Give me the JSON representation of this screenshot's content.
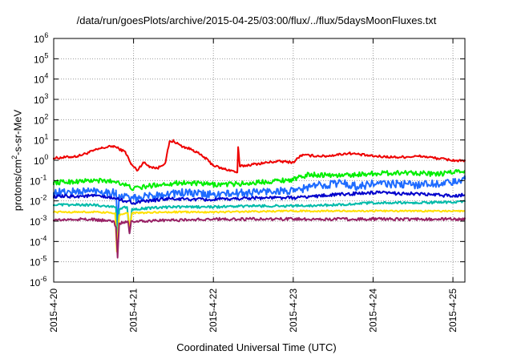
{
  "chart_data": {
    "type": "line",
    "title": "/data/run/goesPlots/archive/2015-04-25/03:00/flux/../flux/5daysMoonFluxes.txt",
    "xlabel": "Coordinated Universal Time (UTC)",
    "ylabel": "protons/cm2-s-sr-MeV",
    "ylabel_base": "protons/cm",
    "ylabel_sup": "2",
    "ylabel_rest": "-s-sr-MeV",
    "x_ticks": [
      "2015-4-20",
      "2015-4-21",
      "2015-4-22",
      "2015-4-23",
      "2015-4-24",
      "2015-4-25"
    ],
    "x_tick_days": [
      0,
      1,
      2,
      3,
      4,
      5
    ],
    "x_range_days": [
      0,
      5.15
    ],
    "y_scale": "log",
    "y_ticks": [
      "10",
      "10",
      "10",
      "10",
      "10",
      "10",
      "10",
      "10",
      "10",
      "10",
      "10",
      "10",
      "10"
    ],
    "y_tick_exp": [
      "6",
      "5",
      "4",
      "3",
      "2",
      "1",
      "0",
      "-1",
      "-2",
      "-3",
      "-4",
      "-5",
      "-6"
    ],
    "y_range_exp": [
      -6,
      6
    ],
    "grid": true,
    "series": [
      {
        "color": "#ee0000",
        "noise": 0.06,
        "points": [
          [
            0,
            0.1
          ],
          [
            0.3,
            0.2
          ],
          [
            0.6,
            0.6
          ],
          [
            0.75,
            0.7
          ],
          [
            0.9,
            0.4
          ],
          [
            0.97,
            -0.2
          ],
          [
            1.05,
            -0.5
          ],
          [
            1.12,
            -0.1
          ],
          [
            1.2,
            -0.3
          ],
          [
            1.3,
            -0.4
          ],
          [
            1.4,
            -0.1
          ],
          [
            1.45,
            0.9
          ],
          [
            1.5,
            0.95
          ],
          [
            1.6,
            0.7
          ],
          [
            1.75,
            0.5
          ],
          [
            1.9,
            0.1
          ],
          [
            2.0,
            -0.25
          ],
          [
            2.1,
            -0.4
          ],
          [
            2.22,
            -0.5
          ],
          [
            2.3,
            -0.6
          ],
          [
            2.31,
            0.65
          ],
          [
            2.33,
            -0.3
          ],
          [
            2.5,
            -0.2
          ],
          [
            2.8,
            -0.05
          ],
          [
            3.0,
            -0.1
          ],
          [
            3.1,
            0.25
          ],
          [
            3.4,
            0.2
          ],
          [
            3.7,
            0.35
          ],
          [
            4.0,
            0.2
          ],
          [
            4.3,
            0.15
          ],
          [
            4.6,
            0.2
          ],
          [
            4.8,
            0.1
          ],
          [
            5.0,
            0.0
          ],
          [
            5.15,
            -0.05
          ]
        ]
      },
      {
        "color": "#00ee00",
        "noise": 0.12,
        "points": [
          [
            0,
            -1.1
          ],
          [
            0.5,
            -1.0
          ],
          [
            0.8,
            -1.05
          ],
          [
            1.0,
            -1.4
          ],
          [
            1.3,
            -1.2
          ],
          [
            1.6,
            -1.1
          ],
          [
            2.0,
            -1.2
          ],
          [
            2.4,
            -1.15
          ],
          [
            2.8,
            -1.0
          ],
          [
            3.0,
            -0.95
          ],
          [
            3.2,
            -0.7
          ],
          [
            3.6,
            -0.75
          ],
          [
            4.0,
            -0.65
          ],
          [
            4.5,
            -0.6
          ],
          [
            4.8,
            -0.7
          ],
          [
            5.15,
            -0.5
          ]
        ]
      },
      {
        "color": "#1e6bff",
        "noise": 0.2,
        "points": [
          [
            0,
            -1.6
          ],
          [
            0.5,
            -1.5
          ],
          [
            0.78,
            -1.6
          ],
          [
            0.8,
            -3.2
          ],
          [
            0.82,
            -1.7
          ],
          [
            1.0,
            -1.9
          ],
          [
            1.3,
            -1.7
          ],
          [
            1.6,
            -1.6
          ],
          [
            2.0,
            -1.7
          ],
          [
            2.4,
            -1.6
          ],
          [
            2.8,
            -1.5
          ],
          [
            3.0,
            -1.55
          ],
          [
            3.2,
            -1.3
          ],
          [
            3.6,
            -1.1
          ],
          [
            3.8,
            -1.3
          ],
          [
            4.0,
            -1.15
          ],
          [
            4.5,
            -1.2
          ],
          [
            5.0,
            -1.1
          ],
          [
            5.15,
            -0.95
          ]
        ]
      },
      {
        "color": "#0000cc",
        "noise": 0.08,
        "points": [
          [
            0,
            -1.8
          ],
          [
            0.5,
            -1.75
          ],
          [
            0.8,
            -1.9
          ],
          [
            1.0,
            -2.1
          ],
          [
            1.4,
            -1.9
          ],
          [
            2.0,
            -1.95
          ],
          [
            2.5,
            -1.85
          ],
          [
            3.0,
            -1.85
          ],
          [
            3.5,
            -1.7
          ],
          [
            4.0,
            -1.6
          ],
          [
            4.5,
            -1.65
          ],
          [
            5.0,
            -1.75
          ],
          [
            5.15,
            -1.7
          ]
        ]
      },
      {
        "color": "#00bbaa",
        "noise": 0.06,
        "points": [
          [
            0,
            -2.2
          ],
          [
            0.5,
            -2.2
          ],
          [
            0.78,
            -2.3
          ],
          [
            0.8,
            -4.4
          ],
          [
            0.82,
            -2.4
          ],
          [
            0.92,
            -2.3
          ],
          [
            0.95,
            -3.6
          ],
          [
            0.98,
            -2.4
          ],
          [
            1.5,
            -2.3
          ],
          [
            2.0,
            -2.3
          ],
          [
            2.5,
            -2.25
          ],
          [
            3.0,
            -2.25
          ],
          [
            3.5,
            -2.2
          ],
          [
            4.0,
            -2.1
          ],
          [
            4.5,
            -2.1
          ],
          [
            5.15,
            -2.05
          ]
        ]
      },
      {
        "color": "#ffe000",
        "noise": 0.04,
        "points": [
          [
            0,
            -2.55
          ],
          [
            0.5,
            -2.55
          ],
          [
            0.77,
            -2.6
          ],
          [
            0.79,
            -4.5
          ],
          [
            0.82,
            -2.7
          ],
          [
            0.93,
            -2.6
          ],
          [
            0.95,
            -3.4
          ],
          [
            0.98,
            -2.6
          ],
          [
            1.5,
            -2.55
          ],
          [
            2.0,
            -2.55
          ],
          [
            3.0,
            -2.5
          ],
          [
            4.0,
            -2.5
          ],
          [
            5.15,
            -2.5
          ]
        ]
      },
      {
        "color": "#992266",
        "noise": 0.07,
        "points": [
          [
            0,
            -2.95
          ],
          [
            0.4,
            -2.9
          ],
          [
            0.75,
            -3.0
          ],
          [
            0.78,
            -3.3
          ],
          [
            0.8,
            -4.8
          ],
          [
            0.82,
            -3.1
          ],
          [
            0.93,
            -3.0
          ],
          [
            0.95,
            -3.6
          ],
          [
            0.97,
            -3.0
          ],
          [
            1.5,
            -2.95
          ],
          [
            2.0,
            -2.9
          ],
          [
            3.0,
            -2.9
          ],
          [
            4.0,
            -2.9
          ],
          [
            5.15,
            -2.9
          ]
        ]
      }
    ]
  }
}
